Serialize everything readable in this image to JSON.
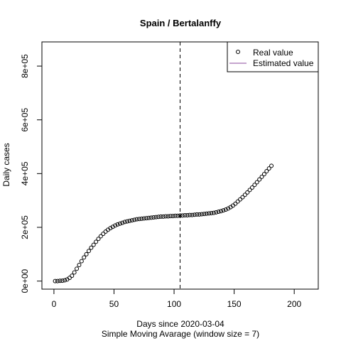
{
  "chart_data": {
    "type": "scatter",
    "title": "Spain / Bertalanffy",
    "xlabel": "Days since 2020-03-04",
    "subtitle": "Simple Moving Avarage (window size = 7)",
    "ylabel": "Daily cases",
    "xlim": [
      -10,
      220
    ],
    "ylim": [
      -30000,
      890000
    ],
    "xticks": [
      0,
      50,
      100,
      150,
      200
    ],
    "xtick_labels": [
      "0",
      "50",
      "100",
      "150",
      "200"
    ],
    "yticks": [
      0,
      200000,
      400000,
      600000,
      800000
    ],
    "ytick_labels": [
      "0e+00",
      "2e+05",
      "4e+05",
      "6e+05",
      "8e+05"
    ],
    "vline_x": 105,
    "legend": {
      "position": "top-right",
      "entries": [
        {
          "label": "Real value",
          "symbol": "open-circle",
          "color": "#000000"
        },
        {
          "label": "Estimated value",
          "symbol": "line",
          "color": "#8b4a9c"
        }
      ]
    },
    "series": [
      {
        "name": "Real value",
        "x": [
          1,
          3,
          5,
          7,
          9,
          11,
          13,
          15,
          17,
          19,
          21,
          23,
          25,
          27,
          29,
          31,
          33,
          35,
          37,
          39,
          41,
          43,
          45,
          47,
          49,
          51,
          53,
          55,
          57,
          59,
          61,
          63,
          65,
          67,
          69,
          71,
          73,
          75,
          77,
          79,
          81,
          83,
          85,
          87,
          89,
          91,
          93,
          95,
          97,
          99,
          101,
          103,
          105,
          107,
          109,
          111,
          113,
          115,
          117,
          119,
          121,
          123,
          125,
          127,
          129,
          131,
          133,
          135,
          137,
          139,
          141,
          143,
          145,
          147,
          149,
          151,
          153,
          155,
          157,
          159,
          161,
          163,
          165,
          167,
          169,
          171,
          173,
          175,
          177,
          179,
          181
        ],
        "y": [
          0,
          0,
          1000,
          1500,
          3000,
          6000,
          12000,
          20000,
          32000,
          46000,
          60000,
          74000,
          88000,
          100000,
          112000,
          124000,
          135000,
          146000,
          157000,
          167000,
          176000,
          184000,
          191000,
          197000,
          202000,
          207000,
          211000,
          214000,
          217000,
          220000,
          222000,
          224000,
          226000,
          228000,
          230000,
          231000,
          232000,
          233000,
          234000,
          235000,
          236000,
          237000,
          238000,
          239000,
          240000,
          240000,
          241000,
          241000,
          242000,
          242000,
          243000,
          243000,
          244000,
          244000,
          245000,
          245000,
          246000,
          246000,
          247000,
          248000,
          248000,
          249000,
          250000,
          251000,
          252000,
          253000,
          254000,
          256000,
          258000,
          260000,
          263000,
          266000,
          270000,
          275000,
          281000,
          288000,
          296000,
          304000,
          312000,
          321000,
          330000,
          339000,
          348000,
          358000,
          368000,
          378000,
          388000,
          398000,
          409000,
          419000,
          429000
        ]
      }
    ]
  }
}
